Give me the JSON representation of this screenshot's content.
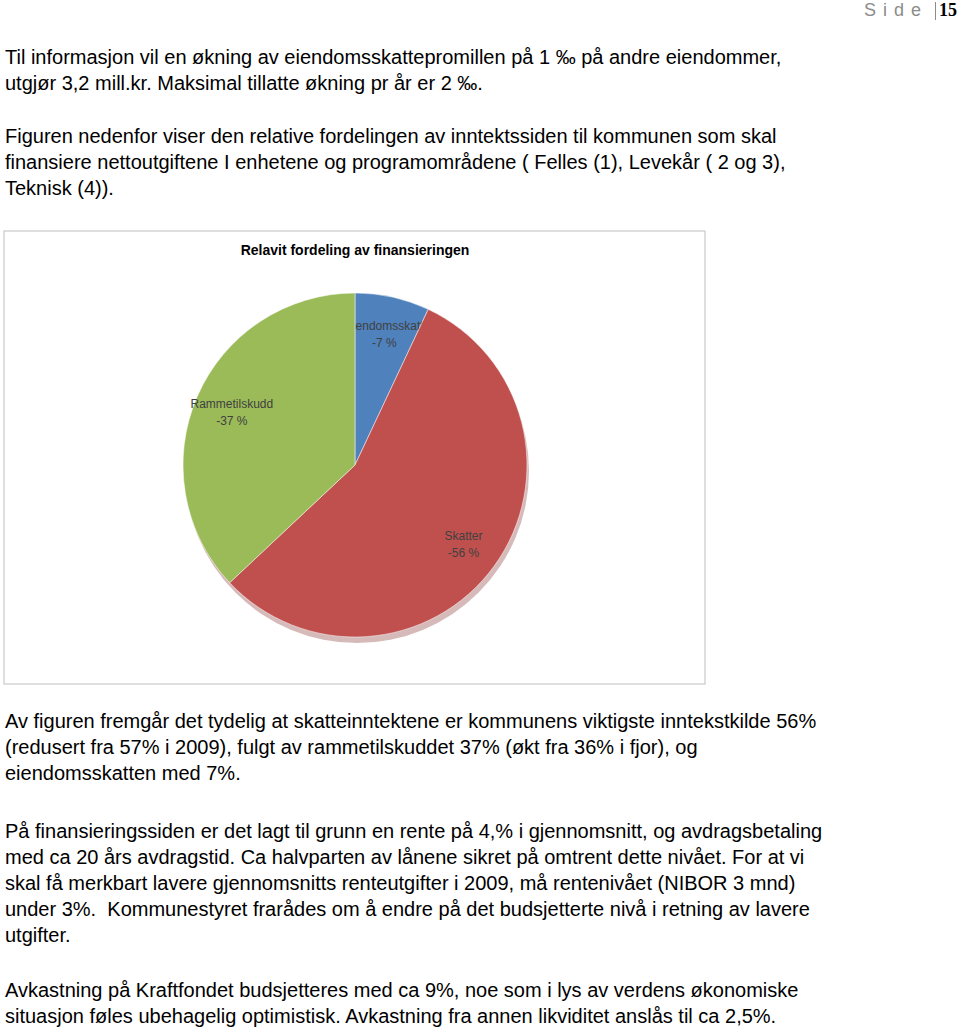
{
  "header": {
    "label": "S i d e",
    "page_number": "15"
  },
  "paragraphs": [
    {
      "lines": [
        "Til informasjon vil en økning av eiendomsskattepromillen på 1 ‰ på andre eiendommer,",
        "utgjør 3,2 mill.kr. Maksimal tillatte økning pr år er 2 ‰."
      ]
    },
    {
      "lines": [
        "Figuren nedenfor viser den relative fordelingen av inntektssiden til kommunen som skal",
        "finansiere nettoutgiftene I enhetene og programområdene ( Felles (1), Levekår ( 2 og 3),",
        "Teknisk (4))."
      ]
    },
    {
      "lines": [
        "Av figuren fremgår det tydelig at skatteinntektene er kommunens viktigste inntekstkilde 56%",
        "(redusert fra 57% i 2009), fulgt av rammetilskuddet 37% (økt fra 36% i fjor), og",
        "eiendomsskatten med 7%."
      ]
    },
    {
      "lines": [
        "På finansieringssiden er det lagt til grunn en rente på 4,% i gjennomsnitt, og avdragsbetaling",
        "med ca 20 års avdragstid. Ca halvparten av lånene sikret på omtrent dette nivået. For at vi",
        "skal få merkbart lavere gjennomsnitts renteutgifter i 2009, må rentenivået (NIBOR 3 mnd)",
        "under 3%.  Kommunestyret frarådes om å endre på det budsjetterte nivå i retning av lavere",
        "utgifter."
      ]
    },
    {
      "lines": [
        "Avkastning på Kraftfondet budsjetteres med ca 9%, noe som i lys av verdens økonomiske",
        "situasjon føles ubehagelig optimistisk. Avkastning fra annen likviditet anslås til ca 2,5%."
      ]
    }
  ],
  "chart_data": {
    "type": "pie",
    "title": "Relavit fordeling av finansieringen",
    "categories": [
      "Eiendomsskatt",
      "Skatter",
      "Rammetilskudd"
    ],
    "values": [
      -7,
      -56,
      -37
    ],
    "value_labels": [
      "-7 %",
      "-56 %",
      "-37 %"
    ],
    "colors": [
      "#4f81bd",
      "#c0504d",
      "#9bbb59"
    ],
    "data_labels": true
  }
}
